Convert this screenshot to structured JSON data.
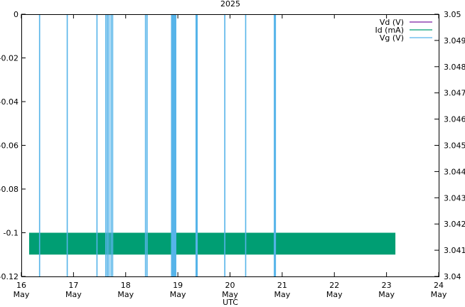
{
  "chart_data": {
    "type": "line",
    "title": "2025",
    "xlabel": "UTC",
    "x_ticks": [
      {
        "day": "16",
        "month": "May",
        "t": 16
      },
      {
        "day": "17",
        "month": "May",
        "t": 17
      },
      {
        "day": "18",
        "month": "May",
        "t": 18
      },
      {
        "day": "19",
        "month": "May",
        "t": 19
      },
      {
        "day": "20",
        "month": "May",
        "t": 20
      },
      {
        "day": "21",
        "month": "May",
        "t": 21
      },
      {
        "day": "22",
        "month": "May",
        "t": 22
      },
      {
        "day": "23",
        "month": "May",
        "t": 23
      },
      {
        "day": "24",
        "month": "May",
        "t": 24
      }
    ],
    "xlim": [
      16,
      24
    ],
    "y_left": {
      "lim": [
        -0.12,
        0
      ],
      "ticks": [
        "0",
        "-0.02",
        "-0.04",
        "-0.06",
        "-0.08",
        "-0.1",
        "-0.12"
      ],
      "tick_values": [
        0,
        -0.02,
        -0.04,
        -0.06,
        -0.08,
        -0.1,
        -0.12
      ]
    },
    "y_right": {
      "lim": [
        3.04,
        3.05
      ],
      "ticks": [
        "3.05",
        "3.049",
        "3.048",
        "3.047",
        "3.046",
        "3.045",
        "3.044",
        "3.043",
        "3.042",
        "3.041",
        "3.04"
      ],
      "tick_values": [
        3.05,
        3.049,
        3.048,
        3.047,
        3.046,
        3.045,
        3.044,
        3.043,
        3.042,
        3.041,
        3.04
      ]
    },
    "legend_position": "top-right",
    "series": [
      {
        "name": "Vd (V)",
        "color": "#7b1fa2",
        "axis": "right",
        "values": []
      },
      {
        "name": "Id (mA)",
        "color": "#009e73",
        "axis": "left",
        "band": {
          "x_start": 16.15,
          "x_end": 23.17,
          "y_low": -0.11,
          "y_high": -0.1
        }
      },
      {
        "name": "Vg (V)",
        "color": "#56b4e9",
        "axis": "left",
        "spikes_x": [
          16.35,
          16.88,
          17.45,
          17.62,
          17.65,
          17.68,
          17.72,
          17.75,
          18.38,
          18.41,
          18.88,
          18.9,
          18.92,
          18.94,
          18.96,
          19.35,
          19.37,
          19.9,
          20.3,
          20.85,
          20.87
        ]
      }
    ]
  }
}
